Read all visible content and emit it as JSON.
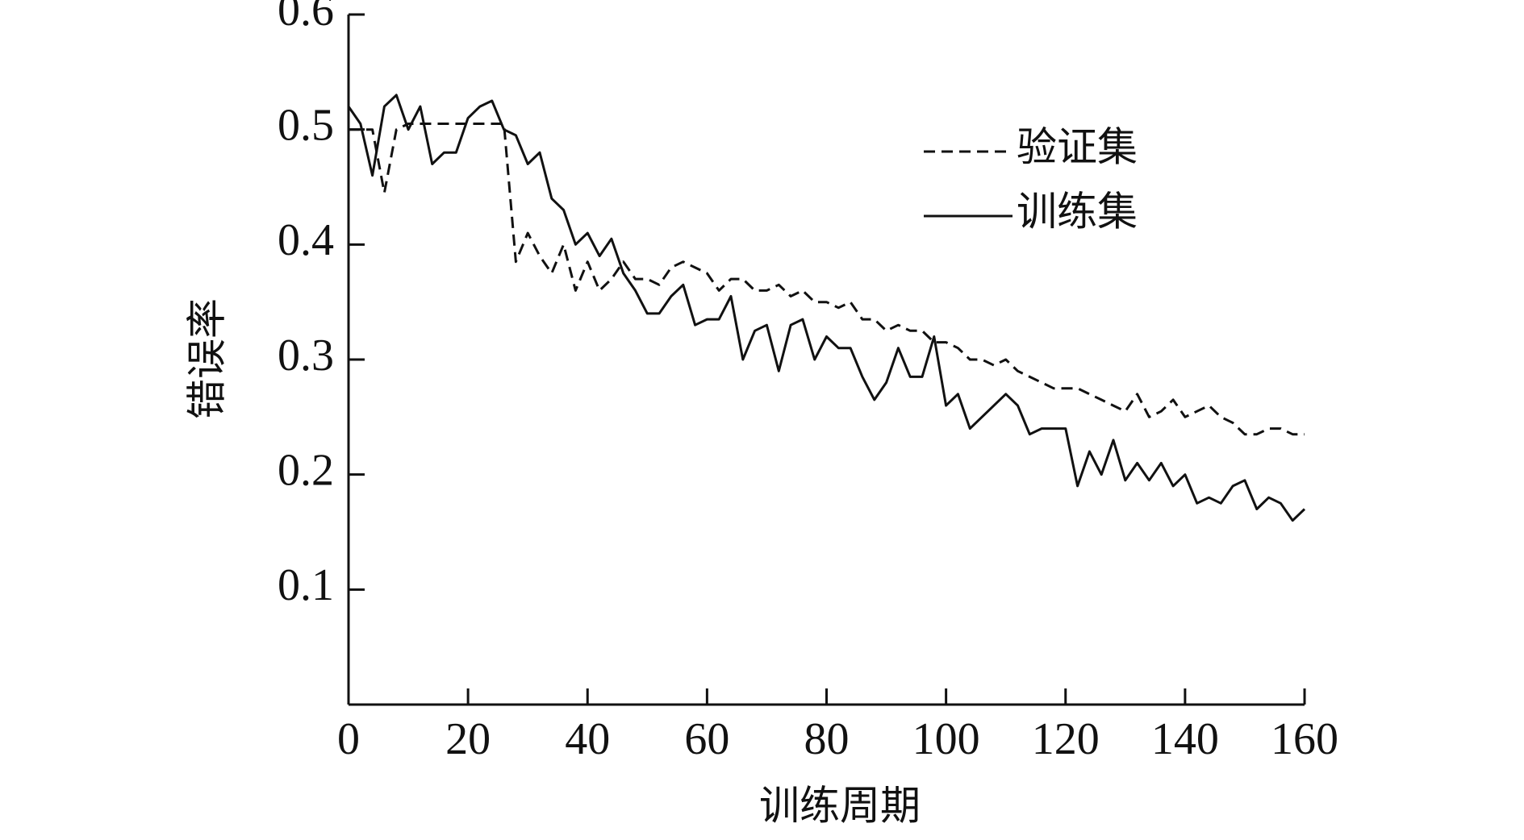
{
  "chart_data": {
    "type": "line",
    "xlabel": "训练周期",
    "ylabel": "错误率",
    "x": [
      0,
      2,
      4,
      6,
      8,
      10,
      12,
      14,
      16,
      18,
      20,
      22,
      24,
      26,
      28,
      30,
      32,
      34,
      36,
      38,
      40,
      42,
      44,
      46,
      48,
      50,
      52,
      54,
      56,
      58,
      60,
      62,
      64,
      66,
      68,
      70,
      72,
      74,
      76,
      78,
      80,
      82,
      84,
      86,
      88,
      90,
      92,
      94,
      96,
      98,
      100,
      102,
      104,
      106,
      108,
      110,
      112,
      114,
      116,
      118,
      120,
      122,
      124,
      126,
      128,
      130,
      132,
      134,
      136,
      138,
      140,
      142,
      144,
      146,
      148,
      150,
      152,
      154,
      156,
      158,
      160
    ],
    "series": [
      {
        "name": "验证集",
        "color": "#111111",
        "linestyle": "dashed",
        "values": [
          0.5,
          0.5,
          0.5,
          0.445,
          0.5,
          0.505,
          0.505,
          0.505,
          0.505,
          0.505,
          0.505,
          0.505,
          0.505,
          0.505,
          0.385,
          0.41,
          0.39,
          0.375,
          0.4,
          0.36,
          0.385,
          0.36,
          0.37,
          0.385,
          0.37,
          0.37,
          0.365,
          0.38,
          0.385,
          0.38,
          0.375,
          0.36,
          0.37,
          0.37,
          0.36,
          0.36,
          0.365,
          0.355,
          0.36,
          0.35,
          0.35,
          0.345,
          0.35,
          0.335,
          0.335,
          0.325,
          0.33,
          0.325,
          0.325,
          0.315,
          0.315,
          0.31,
          0.3,
          0.3,
          0.295,
          0.3,
          0.29,
          0.285,
          0.28,
          0.275,
          0.275,
          0.275,
          0.27,
          0.265,
          0.26,
          0.255,
          0.27,
          0.25,
          0.255,
          0.265,
          0.25,
          0.255,
          0.26,
          0.25,
          0.245,
          0.235,
          0.235,
          0.24,
          0.24,
          0.235,
          0.235
        ]
      },
      {
        "name": "训练集",
        "color": "#111111",
        "linestyle": "solid",
        "values": [
          0.52,
          0.505,
          0.46,
          0.52,
          0.53,
          0.5,
          0.52,
          0.47,
          0.48,
          0.48,
          0.51,
          0.52,
          0.525,
          0.5,
          0.495,
          0.47,
          0.48,
          0.44,
          0.43,
          0.4,
          0.41,
          0.39,
          0.405,
          0.375,
          0.36,
          0.34,
          0.34,
          0.355,
          0.365,
          0.33,
          0.335,
          0.335,
          0.355,
          0.3,
          0.325,
          0.33,
          0.29,
          0.33,
          0.335,
          0.3,
          0.32,
          0.31,
          0.31,
          0.285,
          0.265,
          0.28,
          0.31,
          0.285,
          0.285,
          0.32,
          0.26,
          0.27,
          0.24,
          0.25,
          0.26,
          0.27,
          0.26,
          0.235,
          0.24,
          0.24,
          0.24,
          0.19,
          0.22,
          0.2,
          0.23,
          0.195,
          0.21,
          0.195,
          0.21,
          0.19,
          0.2,
          0.175,
          0.18,
          0.175,
          0.19,
          0.195,
          0.17,
          0.18,
          0.175,
          0.16,
          0.17
        ]
      }
    ],
    "xlim": [
      0,
      160
    ],
    "xticks": [
      0,
      20,
      40,
      60,
      80,
      100,
      120,
      140,
      160
    ],
    "ylim": [
      0,
      0.6
    ],
    "yticks": [
      0.1,
      0.2,
      0.3,
      0.4,
      0.5,
      0.6
    ],
    "grid": false,
    "legend": "upper right"
  }
}
